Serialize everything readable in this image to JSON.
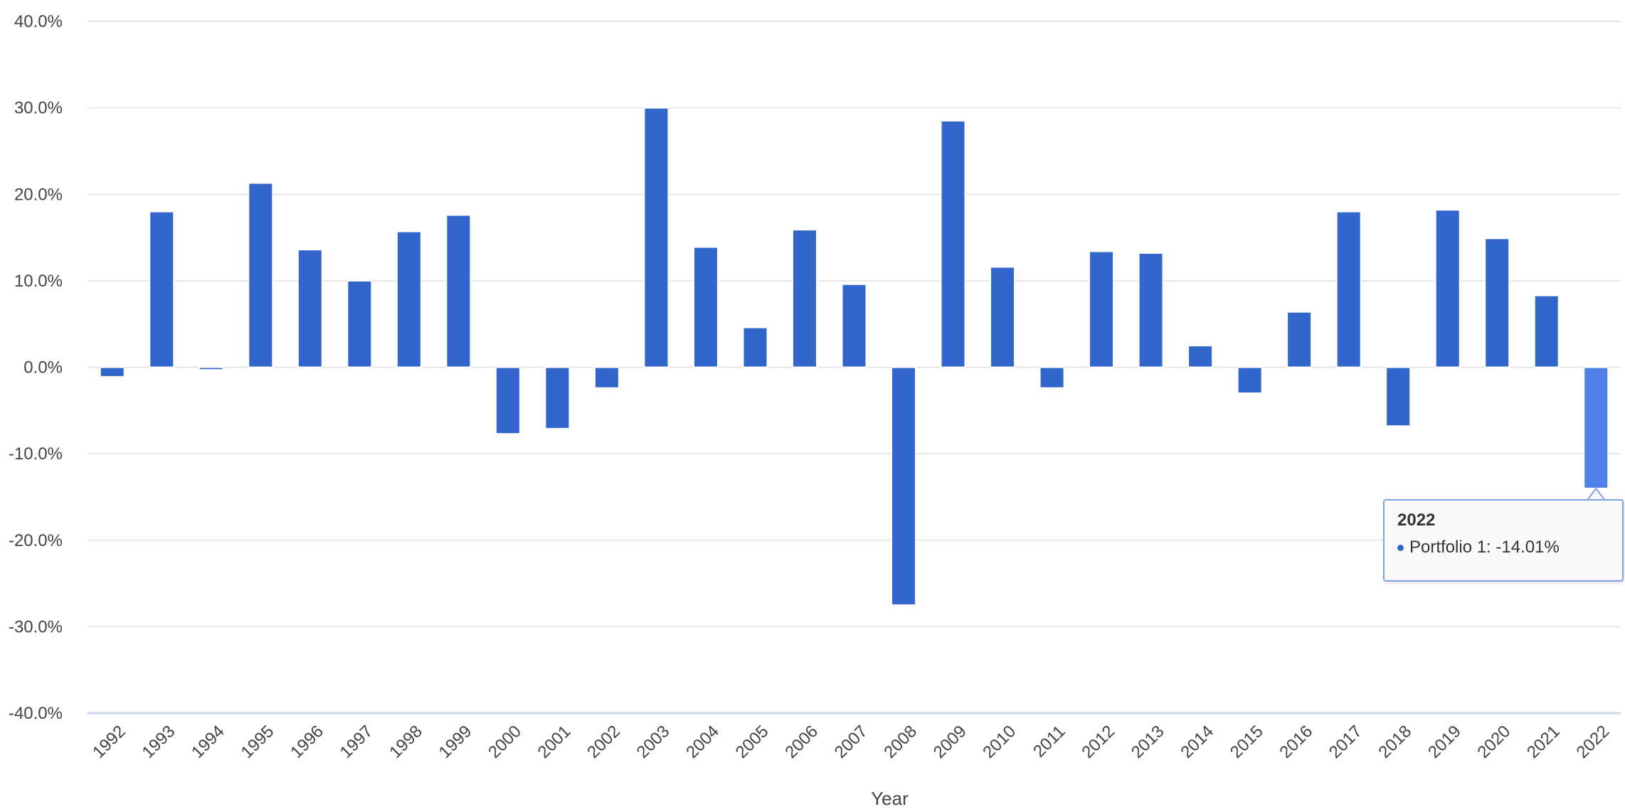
{
  "chart_data": {
    "type": "bar",
    "title": "",
    "xlabel": "Year",
    "ylabel": "",
    "ylim": [
      -40,
      40
    ],
    "yticks": [
      40,
      30,
      20,
      10,
      0,
      -10,
      -20,
      -30,
      -40
    ],
    "ytick_labels": [
      "40.0%",
      "30.0%",
      "20.0%",
      "10.0%",
      "0.0%",
      "-10.0%",
      "-20.0%",
      "-30.0%",
      "-40.0%"
    ],
    "grid": true,
    "categories": [
      "1992",
      "1993",
      "1994",
      "1995",
      "1996",
      "1997",
      "1998",
      "1999",
      "2000",
      "2001",
      "2002",
      "2003",
      "2004",
      "2005",
      "2006",
      "2007",
      "2008",
      "2009",
      "2010",
      "2011",
      "2012",
      "2013",
      "2014",
      "2015",
      "2016",
      "2017",
      "2018",
      "2019",
      "2020",
      "2021",
      "2022"
    ],
    "series": [
      {
        "name": "Portfolio 1",
        "color": "#3366cc",
        "highlight_color": "#4f80e6",
        "values": [
          -1.1,
          18.0,
          -0.3,
          21.3,
          13.6,
          10.0,
          15.7,
          17.6,
          -7.7,
          -7.1,
          -2.4,
          30.0,
          13.9,
          4.6,
          15.9,
          9.6,
          -27.5,
          28.5,
          11.6,
          -2.4,
          13.4,
          13.2,
          2.5,
          -3.0,
          6.4,
          18.0,
          -6.8,
          18.2,
          14.9,
          8.3,
          -14.01
        ]
      }
    ],
    "highlighted_index": 30,
    "tooltip": {
      "title": "2022",
      "text": "Portfolio 1: -14.01%"
    }
  }
}
